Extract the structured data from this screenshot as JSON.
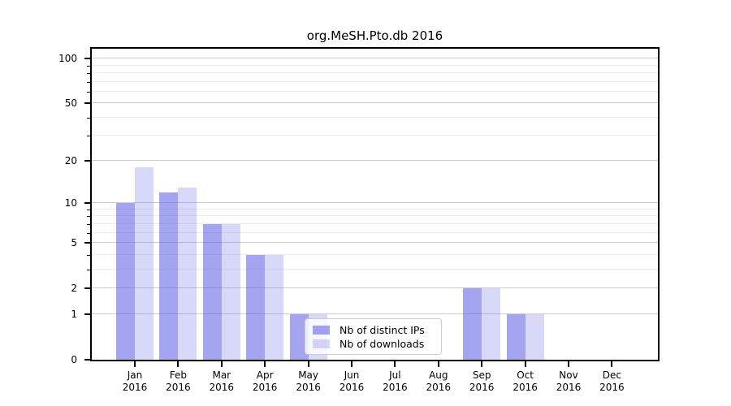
{
  "chart_data": {
    "type": "bar",
    "title": "org.MeSH.Pto.db 2016",
    "xlabel": "",
    "ylabel": "",
    "year_label": "2016",
    "categories": [
      "Jan",
      "Feb",
      "Mar",
      "Apr",
      "May",
      "Jun",
      "Jul",
      "Aug",
      "Sep",
      "Oct",
      "Nov",
      "Dec"
    ],
    "series": [
      {
        "name": "Nb of distinct IPs",
        "color": "#5a5ae6",
        "alpha": 0.55,
        "values": [
          10,
          12,
          7,
          4,
          1,
          0,
          0,
          0,
          2,
          1,
          0,
          0
        ]
      },
      {
        "name": "Nb of downloads",
        "color": "#5a5ae6",
        "alpha": 0.235,
        "values": [
          18,
          13,
          7,
          4,
          1,
          0,
          0,
          0,
          2,
          1,
          0,
          0
        ]
      }
    ],
    "yscale": "log10(1+x)",
    "ylim": [
      0,
      117
    ],
    "yticks_major": [
      0,
      1,
      2,
      5,
      10,
      20,
      50,
      100
    ],
    "yticks_minor": [
      3,
      4,
      6,
      7,
      8,
      9,
      30,
      40,
      60,
      70,
      80,
      90
    ],
    "grid": true,
    "legend_position": "lower-center-inside"
  },
  "colors": {
    "grid_major": "#cccccc",
    "grid_minor": "#ebebeb",
    "spine": "#000000",
    "legend_border": "#cccccc"
  }
}
